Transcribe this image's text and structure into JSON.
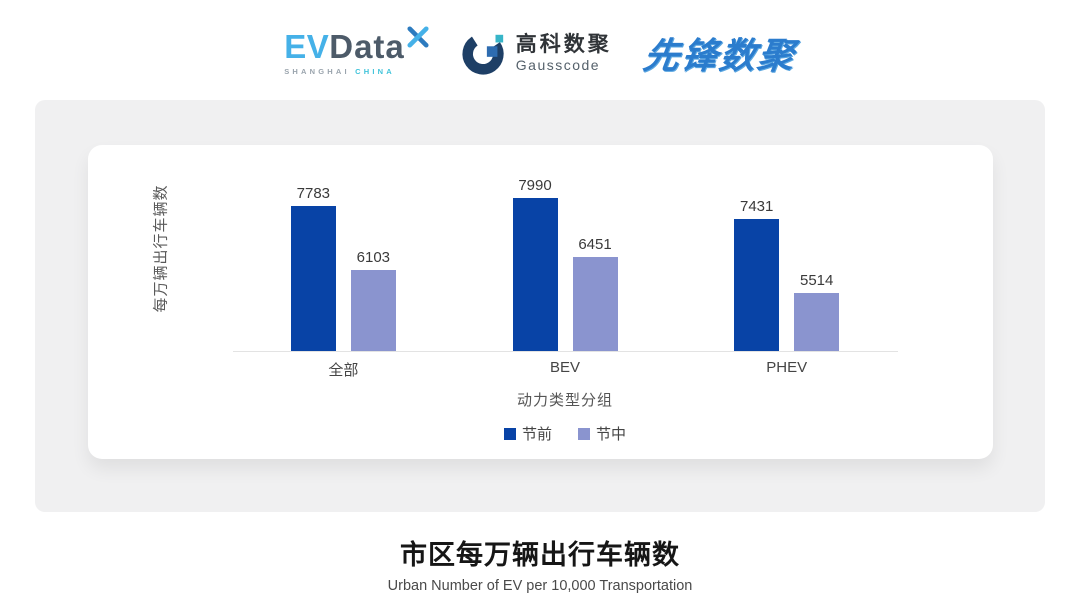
{
  "header": {
    "evdata": {
      "ev": "EV",
      "data": "Data",
      "sub_left": "SHANGHAI",
      "sub_right": "CHINA"
    },
    "gausscode": {
      "cn": "高科数聚",
      "en": "Gausscode"
    },
    "pioneer": {
      "text": "先锋数聚"
    }
  },
  "chart_data": {
    "type": "bar",
    "categories": [
      "全部",
      "BEV",
      "PHEV"
    ],
    "series": [
      {
        "name": "节前",
        "color": "#0843a6",
        "values": [
          7783,
          7990,
          7431
        ]
      },
      {
        "name": "节中",
        "color": "#8a94cf",
        "values": [
          6103,
          6451,
          5514
        ]
      }
    ],
    "title": "",
    "xlabel": "动力类型分组",
    "ylabel": "每万辆出行车辆数",
    "ylim": [
      4000,
      8200
    ],
    "grid": false,
    "legend_position": "bottom",
    "bar_value_labels": true
  },
  "footer": {
    "title": "市区每万辆出行车辆数",
    "subtitle": "Urban Number of EV per 10,000 Transportation"
  },
  "colors": {
    "series_pre": "#0843a6",
    "series_mid": "#8a94cf",
    "panel_bg": "#f0f0f1",
    "card_bg": "#ffffff",
    "axis_line": "#e3e3e3",
    "evdata_blue": "#45b1e8",
    "evdata_slate": "#4d5b69",
    "gausscode_navy": "#1e3f66",
    "gausscode_blue": "#2e6cb0",
    "gausscode_teal": "#37b5c8",
    "pioneer_blue": "#2b7ccd"
  }
}
